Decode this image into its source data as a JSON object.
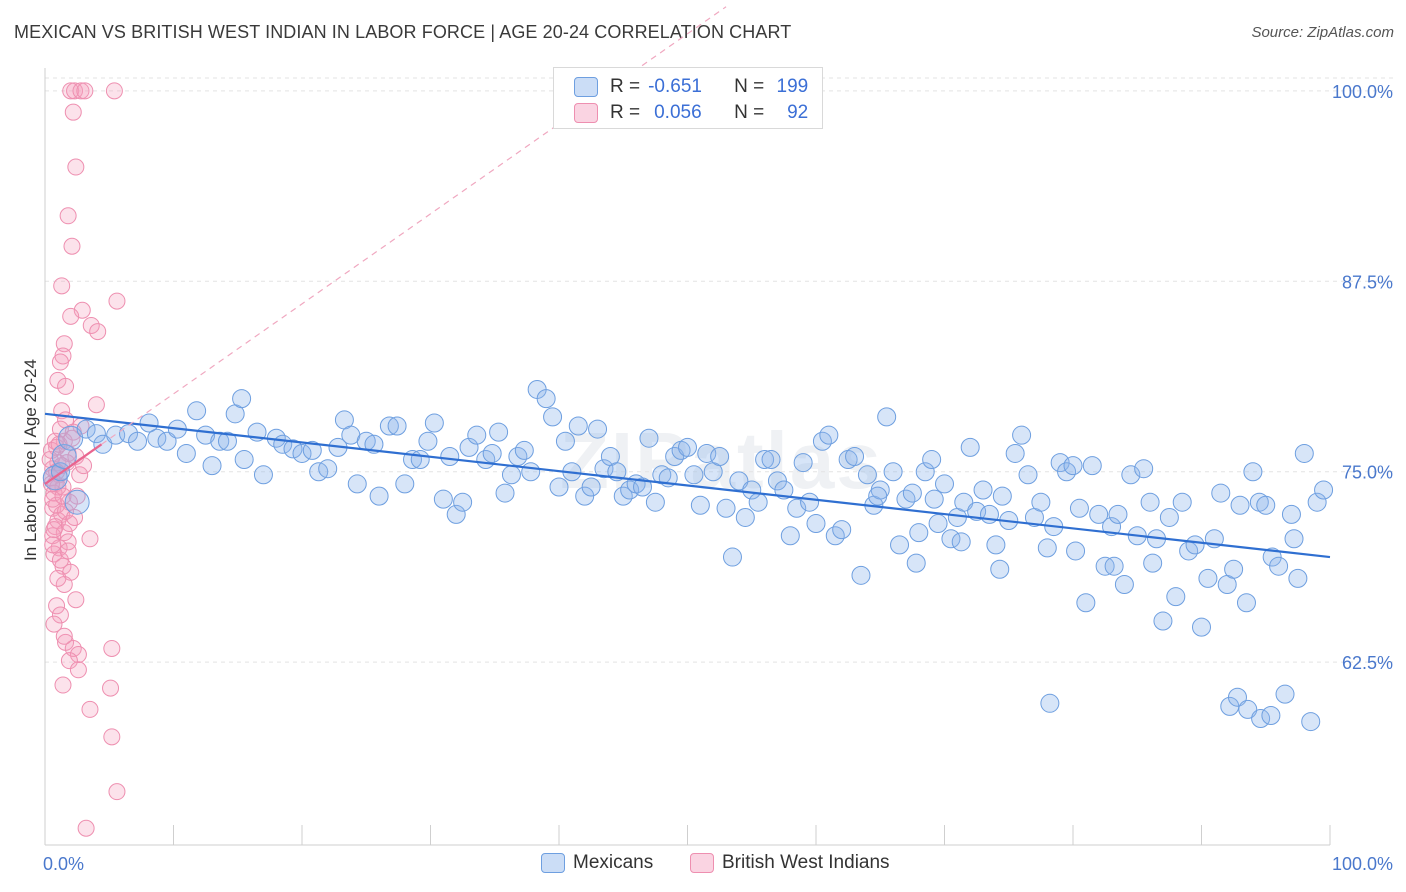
{
  "title": "MEXICAN VS BRITISH WEST INDIAN IN LABOR FORCE | AGE 20-24 CORRELATION CHART",
  "source": "Source: ZipAtlas.com",
  "watermark": "ZIPatlas",
  "colors": {
    "mexicans_fill": "rgba(139,180,235,0.35)",
    "mexicans_stroke": "#6e9fe0",
    "mexicans_line": "#2f6fd1",
    "bwi_fill": "rgba(245,160,190,0.30)",
    "bwi_stroke": "#ee8fb0",
    "bwi_line": "#e9658f",
    "tick_label": "#4a78cc",
    "grid": "#e3e3e3"
  },
  "stats": {
    "rows": [
      {
        "r_label": "R =",
        "r_value": "-0.651",
        "n_label": "N =",
        "n_value": "199"
      },
      {
        "r_label": "R =",
        "r_value": "0.056",
        "n_label": "N =",
        "n_value": "92"
      }
    ]
  },
  "chart_data": {
    "type": "scatter",
    "title": "MEXICAN VS BRITISH WEST INDIAN IN LABOR FORCE | AGE 20-24 CORRELATION CHART",
    "xlabel": "",
    "ylabel": "In Labor Force | Age 20-24",
    "xlim": [
      0,
      100
    ],
    "ylim": [
      50.5,
      101.5
    ],
    "x_tick_labels": [
      "0.0%",
      "100.0%"
    ],
    "y_ticks": [
      62.5,
      75.0,
      87.5,
      100.0
    ],
    "y_tick_labels": [
      "62.5%",
      "75.0%",
      "87.5%",
      "100.0%"
    ],
    "grid": true,
    "legend": "bottom",
    "series": [
      {
        "name": "Mexicans",
        "R": -0.651,
        "N": 199,
        "trend": {
          "x": [
            0,
            100
          ],
          "y": [
            78.8,
            69.4
          ]
        },
        "points": [
          [
            0.8,
            74.6
          ],
          [
            1.2,
            75.0
          ],
          [
            1.5,
            76.0
          ],
          [
            2.0,
            77.2
          ],
          [
            2.5,
            73.0
          ],
          [
            3.2,
            77.8
          ],
          [
            4.0,
            77.5
          ],
          [
            4.5,
            76.8
          ],
          [
            5.5,
            77.4
          ],
          [
            6.5,
            77.5
          ],
          [
            7.2,
            77.0
          ],
          [
            8.1,
            78.2
          ],
          [
            8.7,
            77.2
          ],
          [
            9.5,
            77.0
          ],
          [
            10.3,
            77.8
          ],
          [
            11.0,
            76.2
          ],
          [
            11.8,
            79.0
          ],
          [
            12.5,
            77.4
          ],
          [
            13.0,
            75.4
          ],
          [
            13.6,
            77.0
          ],
          [
            14.2,
            77.0
          ],
          [
            14.8,
            78.8
          ],
          [
            15.3,
            79.8
          ],
          [
            15.5,
            75.8
          ],
          [
            16.5,
            77.6
          ],
          [
            17.0,
            74.8
          ],
          [
            18.0,
            77.2
          ],
          [
            18.5,
            76.8
          ],
          [
            19.3,
            76.5
          ],
          [
            20.0,
            76.2
          ],
          [
            20.8,
            76.4
          ],
          [
            21.3,
            75.0
          ],
          [
            22.0,
            75.2
          ],
          [
            22.8,
            76.6
          ],
          [
            23.3,
            78.4
          ],
          [
            23.8,
            77.4
          ],
          [
            24.3,
            74.2
          ],
          [
            25.0,
            77.0
          ],
          [
            25.6,
            76.8
          ],
          [
            26.0,
            73.4
          ],
          [
            26.8,
            78.0
          ],
          [
            27.4,
            78.0
          ],
          [
            28.0,
            74.2
          ],
          [
            28.6,
            75.8
          ],
          [
            29.2,
            75.8
          ],
          [
            29.8,
            77.0
          ],
          [
            30.3,
            78.2
          ],
          [
            31.0,
            73.2
          ],
          [
            31.5,
            76.0
          ],
          [
            32.0,
            72.2
          ],
          [
            32.5,
            73.0
          ],
          [
            33.0,
            76.6
          ],
          [
            33.6,
            77.4
          ],
          [
            34.3,
            75.8
          ],
          [
            34.8,
            76.2
          ],
          [
            35.3,
            77.6
          ],
          [
            35.8,
            73.6
          ],
          [
            36.3,
            74.8
          ],
          [
            36.8,
            76.0
          ],
          [
            37.3,
            76.4
          ],
          [
            37.8,
            75.0
          ],
          [
            38.3,
            80.4
          ],
          [
            39.0,
            79.8
          ],
          [
            39.5,
            78.6
          ],
          [
            40.0,
            74.0
          ],
          [
            40.5,
            77.0
          ],
          [
            41.0,
            75.0
          ],
          [
            41.5,
            78.0
          ],
          [
            42.0,
            73.4
          ],
          [
            42.5,
            74.0
          ],
          [
            43.0,
            77.8
          ],
          [
            43.5,
            75.2
          ],
          [
            44.0,
            76.0
          ],
          [
            44.5,
            75.0
          ],
          [
            45.0,
            73.4
          ],
          [
            45.5,
            73.8
          ],
          [
            46.0,
            74.2
          ],
          [
            46.5,
            74.0
          ],
          [
            47.0,
            77.2
          ],
          [
            47.5,
            73.0
          ],
          [
            48.0,
            74.8
          ],
          [
            48.5,
            74.6
          ],
          [
            49.0,
            76.0
          ],
          [
            49.5,
            76.4
          ],
          [
            50.0,
            76.6
          ],
          [
            50.5,
            74.8
          ],
          [
            51.0,
            72.8
          ],
          [
            51.5,
            76.2
          ],
          [
            52.0,
            75.0
          ],
          [
            52.5,
            76.0
          ],
          [
            53.0,
            72.6
          ],
          [
            53.5,
            69.4
          ],
          [
            54.0,
            74.4
          ],
          [
            54.5,
            72.0
          ],
          [
            55.0,
            73.8
          ],
          [
            55.5,
            73.0
          ],
          [
            56.0,
            75.8
          ],
          [
            56.5,
            75.8
          ],
          [
            57.0,
            74.4
          ],
          [
            57.5,
            73.8
          ],
          [
            58.0,
            70.8
          ],
          [
            58.5,
            72.6
          ],
          [
            59.0,
            75.6
          ],
          [
            59.5,
            73.0
          ],
          [
            60.0,
            71.6
          ],
          [
            60.5,
            77.0
          ],
          [
            61.0,
            77.4
          ],
          [
            61.5,
            70.8
          ],
          [
            62.0,
            71.2
          ],
          [
            62.5,
            75.8
          ],
          [
            63.0,
            76.0
          ],
          [
            63.5,
            68.2
          ],
          [
            64.0,
            74.8
          ],
          [
            64.5,
            72.8
          ],
          [
            65.0,
            73.8
          ],
          [
            65.5,
            78.6
          ],
          [
            66.0,
            75.0
          ],
          [
            66.5,
            70.2
          ],
          [
            67.0,
            73.2
          ],
          [
            67.5,
            73.6
          ],
          [
            68.0,
            71.0
          ],
          [
            68.5,
            75.0
          ],
          [
            69.0,
            75.8
          ],
          [
            69.5,
            71.6
          ],
          [
            70.0,
            74.2
          ],
          [
            70.5,
            70.6
          ],
          [
            71.0,
            72.0
          ],
          [
            71.5,
            73.0
          ],
          [
            72.0,
            76.6
          ],
          [
            72.5,
            72.4
          ],
          [
            73.0,
            73.8
          ],
          [
            73.5,
            72.2
          ],
          [
            74.0,
            70.2
          ],
          [
            74.5,
            73.4
          ],
          [
            75.0,
            71.8
          ],
          [
            75.5,
            76.2
          ],
          [
            76.0,
            77.4
          ],
          [
            76.5,
            74.8
          ],
          [
            77.0,
            72.0
          ],
          [
            77.5,
            73.0
          ],
          [
            78.0,
            70.0
          ],
          [
            78.5,
            71.4
          ],
          [
            79.0,
            75.6
          ],
          [
            79.5,
            75.0
          ],
          [
            80.0,
            75.4
          ],
          [
            80.5,
            72.6
          ],
          [
            81.0,
            66.4
          ],
          [
            81.5,
            75.4
          ],
          [
            82.0,
            72.2
          ],
          [
            82.5,
            68.8
          ],
          [
            83.0,
            71.4
          ],
          [
            83.5,
            72.2
          ],
          [
            84.0,
            67.6
          ],
          [
            84.5,
            74.8
          ],
          [
            85.0,
            70.8
          ],
          [
            85.5,
            75.2
          ],
          [
            86.0,
            73.0
          ],
          [
            86.5,
            70.6
          ],
          [
            87.0,
            65.2
          ],
          [
            87.5,
            72.0
          ],
          [
            88.0,
            66.8
          ],
          [
            88.5,
            73.0
          ],
          [
            89.0,
            69.8
          ],
          [
            89.5,
            70.2
          ],
          [
            90.0,
            64.8
          ],
          [
            90.5,
            68.0
          ],
          [
            91.0,
            70.6
          ],
          [
            91.5,
            73.6
          ],
          [
            92.0,
            67.6
          ],
          [
            92.5,
            68.6
          ],
          [
            93.0,
            72.8
          ],
          [
            93.5,
            66.4
          ],
          [
            94.0,
            75.0
          ],
          [
            94.5,
            73.0
          ],
          [
            95.0,
            72.8
          ],
          [
            95.5,
            69.4
          ],
          [
            96.0,
            68.8
          ],
          [
            96.5,
            60.4
          ],
          [
            97.0,
            72.2
          ],
          [
            97.5,
            68.0
          ],
          [
            98.0,
            76.2
          ],
          [
            98.5,
            58.6
          ],
          [
            99.0,
            73.0
          ],
          [
            99.5,
            73.8
          ],
          [
            78.2,
            59.8
          ],
          [
            92.2,
            59.6
          ],
          [
            92.8,
            60.2
          ],
          [
            93.6,
            59.4
          ],
          [
            94.6,
            58.8
          ],
          [
            95.4,
            59.0
          ],
          [
            97.2,
            70.6
          ],
          [
            83.2,
            68.8
          ],
          [
            86.2,
            69.0
          ],
          [
            71.3,
            70.4
          ],
          [
            64.8,
            73.4
          ],
          [
            67.8,
            69.0
          ],
          [
            69.2,
            73.2
          ],
          [
            74.3,
            68.6
          ],
          [
            80.2,
            69.8
          ]
        ]
      },
      {
        "name": "British West Indians",
        "R": 0.056,
        "N": 92,
        "trend": {
          "x": [
            0,
            4.4
          ],
          "y": [
            74.2,
            76.8
          ]
        },
        "points": [
          [
            2.0,
            100.0
          ],
          [
            2.3,
            100.0
          ],
          [
            2.8,
            100.0
          ],
          [
            3.1,
            100.0
          ],
          [
            5.4,
            100.0
          ],
          [
            2.2,
            98.6
          ],
          [
            2.4,
            95.0
          ],
          [
            1.8,
            91.8
          ],
          [
            2.1,
            89.8
          ],
          [
            1.3,
            87.2
          ],
          [
            5.6,
            86.2
          ],
          [
            2.9,
            85.6
          ],
          [
            2.0,
            85.2
          ],
          [
            3.6,
            84.6
          ],
          [
            4.1,
            84.2
          ],
          [
            1.5,
            83.4
          ],
          [
            1.4,
            82.6
          ],
          [
            1.2,
            82.2
          ],
          [
            1.0,
            81.0
          ],
          [
            1.6,
            80.6
          ],
          [
            4.0,
            79.4
          ],
          [
            1.3,
            79.0
          ],
          [
            1.6,
            78.4
          ],
          [
            2.8,
            78.0
          ],
          [
            1.2,
            77.8
          ],
          [
            2.2,
            77.6
          ],
          [
            1.5,
            77.0
          ],
          [
            0.9,
            76.6
          ],
          [
            1.8,
            76.2
          ],
          [
            2.4,
            76.0
          ],
          [
            1.0,
            75.6
          ],
          [
            0.6,
            75.2
          ],
          [
            1.1,
            74.8
          ],
          [
            0.5,
            74.6
          ],
          [
            0.8,
            74.2
          ],
          [
            1.4,
            74.0
          ],
          [
            0.7,
            73.6
          ],
          [
            2.5,
            73.4
          ],
          [
            1.9,
            73.0
          ],
          [
            0.6,
            72.6
          ],
          [
            1.3,
            72.2
          ],
          [
            1.0,
            71.8
          ],
          [
            0.8,
            71.4
          ],
          [
            1.5,
            71.0
          ],
          [
            0.6,
            70.8
          ],
          [
            3.5,
            70.6
          ],
          [
            1.8,
            70.4
          ],
          [
            1.1,
            70.0
          ],
          [
            0.7,
            69.6
          ],
          [
            1.4,
            68.8
          ],
          [
            2.0,
            68.4
          ],
          [
            1.5,
            67.6
          ],
          [
            0.9,
            66.2
          ],
          [
            1.2,
            65.6
          ],
          [
            1.6,
            63.8
          ],
          [
            2.2,
            63.4
          ],
          [
            2.6,
            63.0
          ],
          [
            1.9,
            62.6
          ],
          [
            5.2,
            63.4
          ],
          [
            2.6,
            62.0
          ],
          [
            1.4,
            61.0
          ],
          [
            5.1,
            60.8
          ],
          [
            3.5,
            59.4
          ],
          [
            5.2,
            57.6
          ],
          [
            5.6,
            54.0
          ],
          [
            3.2,
            51.6
          ],
          [
            0.4,
            75.8
          ],
          [
            0.5,
            76.4
          ],
          [
            0.9,
            72.8
          ],
          [
            1.7,
            75.6
          ],
          [
            1.0,
            74.0
          ],
          [
            0.6,
            73.2
          ],
          [
            1.3,
            75.4
          ],
          [
            0.8,
            77.0
          ],
          [
            1.9,
            71.6
          ],
          [
            1.2,
            69.2
          ],
          [
            2.7,
            74.8
          ],
          [
            0.7,
            71.2
          ],
          [
            1.6,
            72.4
          ],
          [
            1.1,
            76.8
          ],
          [
            0.5,
            74.2
          ],
          [
            0.9,
            75.0
          ],
          [
            2.1,
            77.2
          ],
          [
            1.4,
            73.4
          ],
          [
            0.6,
            70.2
          ],
          [
            1.8,
            69.8
          ],
          [
            2.3,
            72.0
          ],
          [
            1.0,
            68.0
          ],
          [
            0.7,
            65.0
          ],
          [
            1.5,
            64.2
          ],
          [
            2.4,
            66.6
          ],
          [
            3.0,
            75.4
          ]
        ]
      }
    ]
  },
  "legend_bottom": {
    "items": [
      {
        "label": "Mexicans"
      },
      {
        "label": "British West Indians"
      }
    ]
  }
}
